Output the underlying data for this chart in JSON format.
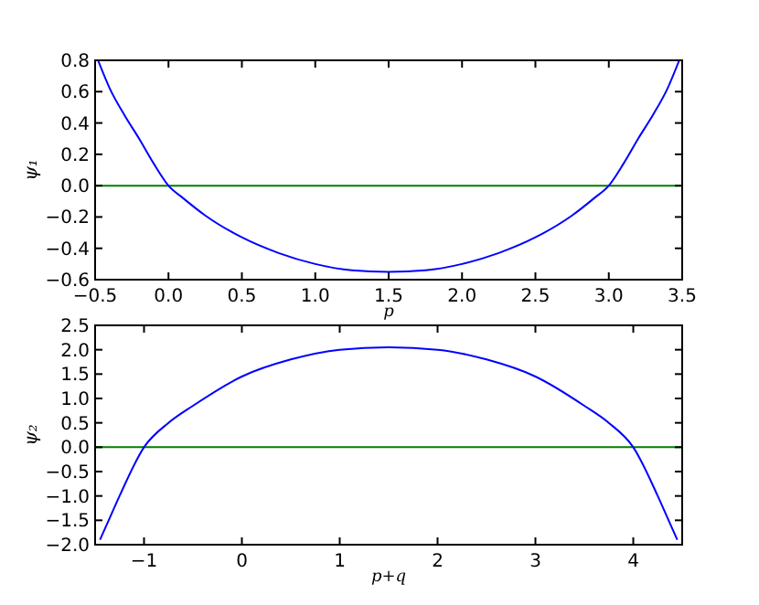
{
  "chart_data": [
    {
      "type": "line",
      "xlabel": "p",
      "ylabel": "ψ₁",
      "xlim": [
        -0.5,
        3.5
      ],
      "ylim": [
        -0.6,
        0.8
      ],
      "xticks": [
        {
          "value": -0.5,
          "label": "−0.5"
        },
        {
          "value": 0,
          "label": "0.0"
        },
        {
          "value": 0.5,
          "label": "0.5"
        },
        {
          "value": 1,
          "label": "1.0"
        },
        {
          "value": 1.5,
          "label": "1.5"
        },
        {
          "value": 2,
          "label": "2.0"
        },
        {
          "value": 2.5,
          "label": "2.5"
        },
        {
          "value": 3,
          "label": "3.0"
        },
        {
          "value": 3.5,
          "label": "3.5"
        }
      ],
      "yticks": [
        {
          "value": -0.6,
          "label": "−0.6"
        },
        {
          "value": -0.4,
          "label": "−0.4"
        },
        {
          "value": -0.2,
          "label": "−0.2"
        },
        {
          "value": 0,
          "label": "0.0"
        },
        {
          "value": 0.2,
          "label": "0.2"
        },
        {
          "value": 0.4,
          "label": "0.4"
        },
        {
          "value": 0.6,
          "label": "0.6"
        },
        {
          "value": 0.8,
          "label": "0.8"
        }
      ],
      "x": [
        -0.48,
        -0.4,
        -0.3,
        -0.2,
        -0.1,
        0,
        0.1,
        0.25,
        0.5,
        0.75,
        1.0,
        1.25,
        1.5,
        1.75,
        2.0,
        2.25,
        2.5,
        2.75,
        2.9,
        3.0,
        3.1,
        3.2,
        3.3,
        3.4,
        3.48
      ],
      "series": [
        {
          "color": "#0000ff",
          "values": [
            0.8,
            0.62,
            0.45,
            0.3,
            0.14,
            0,
            -0.08,
            -0.19,
            -0.33,
            -0.43,
            -0.5,
            -0.54,
            -0.55,
            -0.54,
            -0.5,
            -0.43,
            -0.33,
            -0.19,
            -0.08,
            0,
            0.14,
            0.3,
            0.45,
            0.62,
            0.8
          ]
        }
      ],
      "ref_lines": [
        {
          "axis": "y",
          "value": 0,
          "color": "#008000"
        }
      ]
    },
    {
      "type": "line",
      "xlabel": "p+q",
      "ylabel": "ψ₂",
      "xlim": [
        -1.5,
        4.5
      ],
      "ylim": [
        -2.0,
        2.5
      ],
      "xticks": [
        {
          "value": -1,
          "label": "−1"
        },
        {
          "value": 0,
          "label": "0"
        },
        {
          "value": 1,
          "label": "1"
        },
        {
          "value": 2,
          "label": "2"
        },
        {
          "value": 3,
          "label": "3"
        },
        {
          "value": 4,
          "label": "4"
        }
      ],
      "yticks": [
        {
          "value": -2,
          "label": "−2.0"
        },
        {
          "value": -1.5,
          "label": "−1.5"
        },
        {
          "value": -1,
          "label": "−1.0"
        },
        {
          "value": -0.5,
          "label": "−0.5"
        },
        {
          "value": 0,
          "label": "0.0"
        },
        {
          "value": 0.5,
          "label": "0.5"
        },
        {
          "value": 1,
          "label": "1.0"
        },
        {
          "value": 1.5,
          "label": "1.5"
        },
        {
          "value": 2,
          "label": "2.0"
        },
        {
          "value": 2.5,
          "label": "2.5"
        }
      ],
      "x": [
        -1.45,
        -1.35,
        -1.25,
        -1,
        -0.75,
        -0.5,
        0,
        0.5,
        1,
        1.5,
        2,
        2.5,
        3,
        3.5,
        3.75,
        4,
        4.25,
        4.35,
        4.45
      ],
      "series": [
        {
          "color": "#0000ff",
          "values": [
            -1.9,
            -1.45,
            -1.0,
            0,
            0.5,
            0.85,
            1.45,
            1.8,
            2.0,
            2.05,
            2.0,
            1.8,
            1.45,
            0.85,
            0.5,
            0,
            -1.0,
            -1.45,
            -1.9
          ]
        }
      ],
      "ref_lines": [
        {
          "axis": "y",
          "value": 0,
          "color": "#008000"
        }
      ]
    }
  ]
}
